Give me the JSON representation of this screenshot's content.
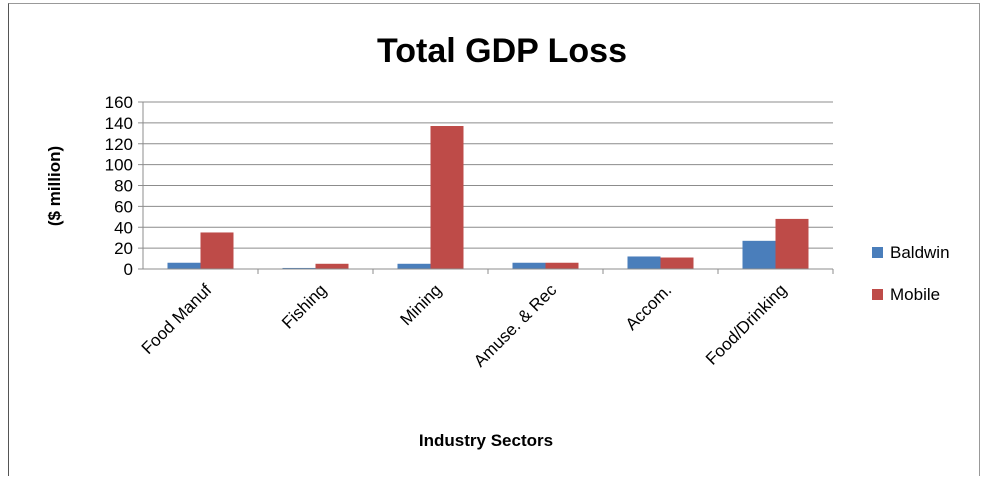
{
  "chart_data": {
    "type": "bar",
    "title": "Total GDP Loss",
    "xlabel": "Industry Sectors",
    "ylabel": "($ million)",
    "ylim": [
      0,
      160
    ],
    "yticks": [
      0,
      20,
      40,
      60,
      80,
      100,
      120,
      140,
      160
    ],
    "grid": true,
    "legend_position": "right",
    "categories": [
      "Food Manuf",
      "Fishing",
      "Mining",
      "Amuse. & Rec",
      "Accom.",
      "Food/Drinking"
    ],
    "series": [
      {
        "name": "Baldwin",
        "color": "#4a7ebb",
        "values": [
          6,
          1,
          5,
          6,
          12,
          27
        ]
      },
      {
        "name": "Mobile",
        "color": "#be4b48",
        "values": [
          35,
          5,
          137,
          6,
          11,
          48
        ]
      }
    ]
  }
}
